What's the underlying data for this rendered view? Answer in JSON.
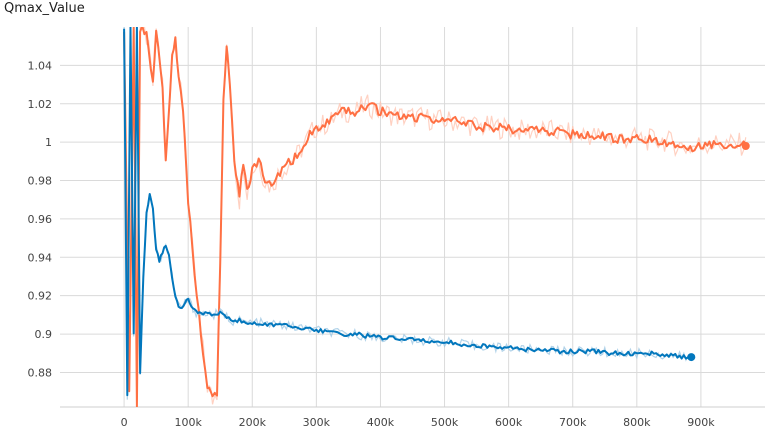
{
  "chart_data": {
    "type": "line",
    "title": "Qmax_Value",
    "xlabel": "",
    "ylabel": "",
    "xlim": [
      -100000,
      1000000
    ],
    "ylim": [
      0.862,
      1.06
    ],
    "x_ticks": [
      0,
      100000,
      200000,
      300000,
      400000,
      500000,
      600000,
      700000,
      800000,
      900000
    ],
    "x_tick_labels": [
      "0",
      "100k",
      "200k",
      "300k",
      "400k",
      "500k",
      "600k",
      "700k",
      "800k",
      "900k"
    ],
    "y_ticks": [
      0.88,
      0.9,
      0.92,
      0.94,
      0.96,
      0.98,
      1.0,
      1.02,
      1.04
    ],
    "y_tick_labels": [
      "0.88",
      "0.9",
      "0.92",
      "0.94",
      "0.96",
      "0.98",
      "1",
      "1.02",
      "1.04"
    ],
    "grid": true,
    "legend": "none",
    "series": [
      {
        "color": "#ff7043",
        "smoothing_band_color": "#ffc6b3",
        "values": [
          [
            0,
            1.06
          ],
          [
            8000,
            0.87
          ],
          [
            15000,
            1.06
          ],
          [
            20000,
            0.862
          ],
          [
            25000,
            1.06
          ],
          [
            35000,
            1.055
          ],
          [
            45000,
            1.03
          ],
          [
            50000,
            1.06
          ],
          [
            60000,
            1.03
          ],
          [
            65000,
            0.99
          ],
          [
            75000,
            1.045
          ],
          [
            80000,
            1.055
          ],
          [
            85000,
            1.035
          ],
          [
            92000,
            1.015
          ],
          [
            100000,
            0.97
          ],
          [
            110000,
            0.93
          ],
          [
            120000,
            0.9
          ],
          [
            130000,
            0.873
          ],
          [
            138000,
            0.866
          ],
          [
            145000,
            0.87
          ],
          [
            150000,
            0.935
          ],
          [
            155000,
            1.02
          ],
          [
            160000,
            1.052
          ],
          [
            165000,
            1.03
          ],
          [
            172000,
            0.99
          ],
          [
            180000,
            0.97
          ],
          [
            186000,
            0.99
          ],
          [
            192000,
            0.975
          ],
          [
            200000,
            0.985
          ],
          [
            210000,
            0.99
          ],
          [
            220000,
            0.98
          ],
          [
            230000,
            0.977
          ],
          [
            240000,
            0.983
          ],
          [
            250000,
            0.987
          ],
          [
            260000,
            0.99
          ],
          [
            270000,
            0.993
          ],
          [
            280000,
            0.998
          ],
          [
            290000,
            1.004
          ],
          [
            300000,
            1.008
          ],
          [
            310000,
            1.009
          ],
          [
            320000,
            1.01
          ],
          [
            330000,
            1.013
          ],
          [
            340000,
            1.016
          ],
          [
            350000,
            1.016
          ],
          [
            360000,
            1.015
          ],
          [
            370000,
            1.018
          ],
          [
            380000,
            1.019
          ],
          [
            390000,
            1.018
          ],
          [
            400000,
            1.016
          ],
          [
            420000,
            1.014
          ],
          [
            440000,
            1.013
          ],
          [
            460000,
            1.013
          ],
          [
            480000,
            1.012
          ],
          [
            500000,
            1.011
          ],
          [
            520000,
            1.011
          ],
          [
            540000,
            1.009
          ],
          [
            560000,
            1.008
          ],
          [
            580000,
            1.008
          ],
          [
            600000,
            1.007
          ],
          [
            620000,
            1.006
          ],
          [
            640000,
            1.006
          ],
          [
            660000,
            1.006
          ],
          [
            680000,
            1.005
          ],
          [
            700000,
            1.004
          ],
          [
            720000,
            1.004
          ],
          [
            740000,
            1.003
          ],
          [
            760000,
            1.002
          ],
          [
            780000,
            1.002
          ],
          [
            800000,
            1.002
          ],
          [
            820000,
            1.001
          ],
          [
            840000,
            1.001
          ],
          [
            860000,
            0.999
          ],
          [
            880000,
            0.997
          ],
          [
            900000,
            0.999
          ],
          [
            920000,
            0.999
          ],
          [
            940000,
            0.999
          ],
          [
            960000,
            0.999
          ],
          [
            970000,
            0.998
          ]
        ]
      },
      {
        "color": "#0277bd",
        "smoothing_band_color": "#9fc8e4",
        "values": [
          [
            0,
            1.06
          ],
          [
            5000,
            0.868
          ],
          [
            10000,
            1.06
          ],
          [
            15000,
            0.9
          ],
          [
            20000,
            1.06
          ],
          [
            25000,
            0.88
          ],
          [
            30000,
            0.93
          ],
          [
            35000,
            0.963
          ],
          [
            40000,
            0.974
          ],
          [
            45000,
            0.965
          ],
          [
            50000,
            0.945
          ],
          [
            55000,
            0.938
          ],
          [
            60000,
            0.943
          ],
          [
            65000,
            0.946
          ],
          [
            70000,
            0.941
          ],
          [
            75000,
            0.93
          ],
          [
            80000,
            0.92
          ],
          [
            85000,
            0.915
          ],
          [
            90000,
            0.914
          ],
          [
            95000,
            0.916
          ],
          [
            100000,
            0.918
          ],
          [
            105000,
            0.915
          ],
          [
            110000,
            0.912
          ],
          [
            115000,
            0.911
          ],
          [
            120000,
            0.91
          ],
          [
            130000,
            0.911
          ],
          [
            140000,
            0.91
          ],
          [
            150000,
            0.911
          ],
          [
            160000,
            0.909
          ],
          [
            170000,
            0.907
          ],
          [
            180000,
            0.907
          ],
          [
            190000,
            0.906
          ],
          [
            200000,
            0.906
          ],
          [
            210000,
            0.906
          ],
          [
            220000,
            0.905
          ],
          [
            240000,
            0.905
          ],
          [
            260000,
            0.904
          ],
          [
            280000,
            0.903
          ],
          [
            300000,
            0.902
          ],
          [
            320000,
            0.901
          ],
          [
            340000,
            0.9
          ],
          [
            360000,
            0.9
          ],
          [
            380000,
            0.899
          ],
          [
            400000,
            0.898
          ],
          [
            420000,
            0.898
          ],
          [
            440000,
            0.897
          ],
          [
            460000,
            0.897
          ],
          [
            480000,
            0.896
          ],
          [
            500000,
            0.896
          ],
          [
            520000,
            0.895
          ],
          [
            540000,
            0.894
          ],
          [
            560000,
            0.894
          ],
          [
            580000,
            0.893
          ],
          [
            600000,
            0.893
          ],
          [
            620000,
            0.892
          ],
          [
            640000,
            0.892
          ],
          [
            660000,
            0.892
          ],
          [
            680000,
            0.891
          ],
          [
            700000,
            0.891
          ],
          [
            720000,
            0.891
          ],
          [
            740000,
            0.891
          ],
          [
            760000,
            0.89
          ],
          [
            780000,
            0.89
          ],
          [
            800000,
            0.89
          ],
          [
            820000,
            0.89
          ],
          [
            840000,
            0.889
          ],
          [
            860000,
            0.889
          ],
          [
            870000,
            0.888
          ],
          [
            880000,
            0.888
          ],
          [
            885000,
            0.888
          ]
        ]
      }
    ]
  }
}
